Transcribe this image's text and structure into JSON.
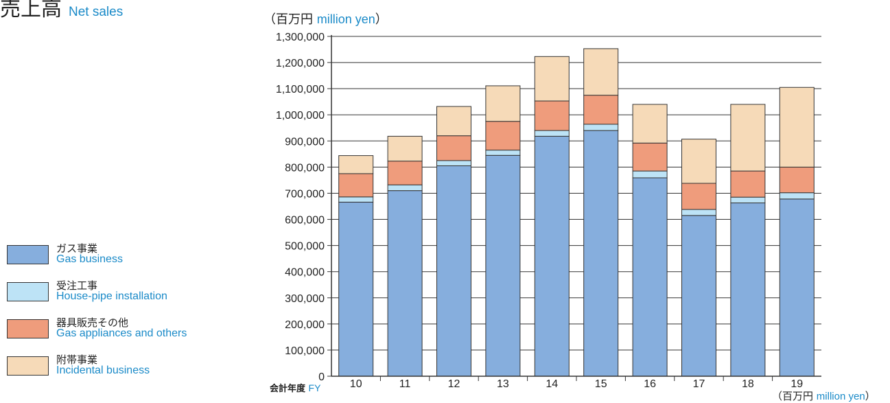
{
  "title": {
    "jp": "売上高",
    "en": "Net sales"
  },
  "unit_top": {
    "jp": "（百万円",
    "en": "million yen",
    "close": "）"
  },
  "unit_bottom": {
    "jp": "（百万円",
    "en": "million yen",
    "close": "）"
  },
  "fy_label": {
    "jp": "会計年度",
    "en": "FY"
  },
  "legend": [
    {
      "jp": "ガス事業",
      "en": "Gas business"
    },
    {
      "jp": "受注工事",
      "en": "House-pipe installation"
    },
    {
      "jp": "器具販売その他",
      "en": "Gas appliances and others"
    },
    {
      "jp": "附帯事業",
      "en": "Incidental business"
    }
  ],
  "colors": {
    "gas": "#86aedd",
    "house": "#bde3f6",
    "appliances": "#ef9c7c",
    "incidental": "#f6dab8",
    "axis": "#333333"
  },
  "chart_data": {
    "type": "bar",
    "stacked": true,
    "categories": [
      "10",
      "11",
      "12",
      "13",
      "14",
      "15",
      "16",
      "17",
      "18",
      "19"
    ],
    "ylim": [
      0,
      1300000
    ],
    "ytick_step": 100000,
    "ytick_labels": [
      "0",
      "100,000",
      "200,000",
      "300,000",
      "400,000",
      "500,000",
      "600,000",
      "700,000",
      "800,000",
      "900,000",
      "1,000,000",
      "1,100,000",
      "1,200,000",
      "1,300,000"
    ],
    "grid": true,
    "series": [
      {
        "name": "ガス事業 Gas business",
        "color_key": "gas",
        "values": [
          666000,
          710000,
          805000,
          845000,
          918000,
          940000,
          759000,
          615000,
          663000,
          678000
        ]
      },
      {
        "name": "受注工事 House-pipe installation",
        "color_key": "house",
        "values": [
          20000,
          22000,
          20000,
          20000,
          22000,
          24000,
          26000,
          23000,
          22000,
          24000
        ]
      },
      {
        "name": "器具販売その他 Gas appliances and others",
        "color_key": "appliances",
        "values": [
          89000,
          91000,
          95000,
          110000,
          113000,
          111000,
          107000,
          100000,
          100000,
          98000
        ]
      },
      {
        "name": "附帯事業 Incidental business",
        "color_key": "incidental",
        "values": [
          69000,
          95000,
          112000,
          136000,
          170000,
          178000,
          148000,
          169000,
          255000,
          305000
        ]
      }
    ]
  }
}
